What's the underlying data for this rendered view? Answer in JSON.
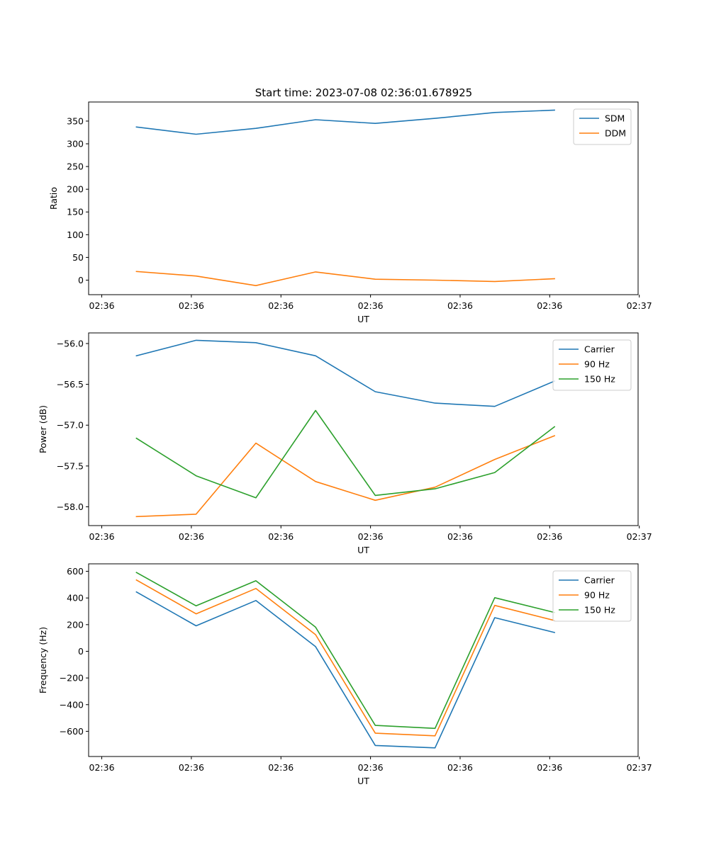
{
  "figure_title": "Start time: 2023-07-08 02:36:01.678925",
  "colors": {
    "blue": "#1f77b4",
    "orange": "#ff7f0e",
    "green": "#2ca02c"
  },
  "chart_data": [
    {
      "type": "line",
      "title": "Start time: 2023-07-08 02:36:01.678925",
      "xlabel": "UT",
      "ylabel": "Ratio",
      "x": [
        1,
        2,
        3,
        4,
        5,
        6,
        7,
        8
      ],
      "xlim": [
        0.2,
        9.4
      ],
      "x_ticks": [
        0.42,
        1.92,
        3.42,
        4.92,
        6.42,
        7.92,
        9.42
      ],
      "x_tick_labels": [
        "02:36",
        "02:36",
        "02:36",
        "02:36",
        "02:36",
        "02:36",
        "02:37"
      ],
      "ylim": [
        -32,
        392
      ],
      "y_ticks": [
        0,
        50,
        100,
        150,
        200,
        250,
        300,
        350
      ],
      "y_tick_labels": [
        "0",
        "50",
        "100",
        "150",
        "200",
        "250",
        "300",
        "350"
      ],
      "legend": "top-right",
      "series": [
        {
          "name": "SDM",
          "color": "#1f77b4",
          "values": [
            337,
            321,
            334,
            353,
            345,
            356,
            369,
            374
          ]
        },
        {
          "name": "DDM",
          "color": "#ff7f0e",
          "values": [
            19,
            9,
            -12,
            18,
            2,
            0,
            -3,
            3
          ]
        }
      ]
    },
    {
      "type": "line",
      "title": "",
      "xlabel": "UT",
      "ylabel": "Power (dB)",
      "x": [
        1,
        2,
        3,
        4,
        5,
        6,
        7,
        8
      ],
      "xlim": [
        0.2,
        9.4
      ],
      "x_ticks": [
        0.42,
        1.92,
        3.42,
        4.92,
        6.42,
        7.92,
        9.42
      ],
      "x_tick_labels": [
        "02:36",
        "02:36",
        "02:36",
        "02:36",
        "02:36",
        "02:36",
        "02:37"
      ],
      "ylim": [
        -58.23,
        -55.87
      ],
      "y_ticks": [
        -58.0,
        -57.5,
        -57.0,
        -56.5,
        -56.0
      ],
      "y_tick_labels": [
        "−58.0",
        "−57.5",
        "−57.0",
        "−56.5",
        "−56.0"
      ],
      "legend": "top-right",
      "series": [
        {
          "name": "Carrier",
          "color": "#1f77b4",
          "values": [
            -56.15,
            -55.96,
            -55.99,
            -56.15,
            -56.59,
            -56.73,
            -56.77,
            -56.46
          ]
        },
        {
          "name": "90 Hz",
          "color": "#ff7f0e",
          "values": [
            -58.12,
            -58.09,
            -57.22,
            -57.69,
            -57.92,
            -57.76,
            -57.42,
            -57.13
          ]
        },
        {
          "name": "150 Hz",
          "color": "#2ca02c",
          "values": [
            -57.16,
            -57.62,
            -57.89,
            -56.82,
            -57.86,
            -57.78,
            -57.58,
            -57.02
          ]
        }
      ]
    },
    {
      "type": "line",
      "title": "",
      "xlabel": "UT",
      "ylabel": "Frequency (Hz)",
      "x": [
        1,
        2,
        3,
        4,
        5,
        6,
        7,
        8
      ],
      "xlim": [
        0.2,
        9.4
      ],
      "x_ticks": [
        0.42,
        1.92,
        3.42,
        4.92,
        6.42,
        7.92,
        9.42
      ],
      "x_tick_labels": [
        "02:36",
        "02:36",
        "02:36",
        "02:36",
        "02:36",
        "02:36",
        "02:37"
      ],
      "ylim": [
        -789,
        656
      ],
      "y_ticks": [
        -600,
        -400,
        -200,
        0,
        200,
        400,
        600
      ],
      "y_tick_labels": [
        "−600",
        "−400",
        "−200",
        "0",
        "200",
        "400",
        "600"
      ],
      "legend": "top-right",
      "series": [
        {
          "name": "Carrier",
          "color": "#1f77b4",
          "values": [
            445,
            191,
            381,
            35,
            -706,
            -724,
            252,
            141
          ]
        },
        {
          "name": "90 Hz",
          "color": "#ff7f0e",
          "values": [
            535,
            281,
            471,
            125,
            -614,
            -634,
            344,
            231
          ]
        },
        {
          "name": "150 Hz",
          "color": "#2ca02c",
          "values": [
            591,
            341,
            529,
            181,
            -556,
            -578,
            402,
            291
          ]
        }
      ]
    }
  ]
}
